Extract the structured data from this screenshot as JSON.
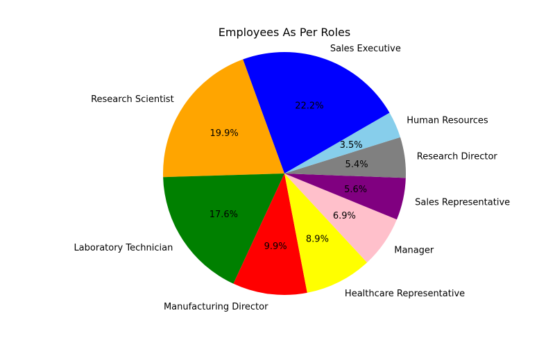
{
  "chart_data": {
    "type": "pie",
    "title": "Employees As Per Roles",
    "start_angle": 30,
    "direction": "counterclockwise",
    "slices": [
      {
        "label": "Sales Executive",
        "value": 22.2,
        "pct_label": "22.2%",
        "color": "#0000ff"
      },
      {
        "label": "Research Scientist",
        "value": 19.9,
        "pct_label": "19.9%",
        "color": "#ffa500"
      },
      {
        "label": "Laboratory Technician",
        "value": 17.6,
        "pct_label": "17.6%",
        "color": "#008000"
      },
      {
        "label": "Manufacturing Director",
        "value": 9.9,
        "pct_label": "9.9%",
        "color": "#ff0000"
      },
      {
        "label": "Healthcare Representative",
        "value": 8.9,
        "pct_label": "8.9%",
        "color": "#ffff00"
      },
      {
        "label": "Manager",
        "value": 6.9,
        "pct_label": "6.9%",
        "color": "#ffc0cb"
      },
      {
        "label": "Sales Representative",
        "value": 5.6,
        "pct_label": "5.6%",
        "color": "#800080"
      },
      {
        "label": "Research Director",
        "value": 5.4,
        "pct_label": "5.4%",
        "color": "#808080"
      },
      {
        "label": "Human Resources",
        "value": 3.5,
        "pct_label": "3.5%",
        "color": "#87ceeb"
      }
    ]
  }
}
